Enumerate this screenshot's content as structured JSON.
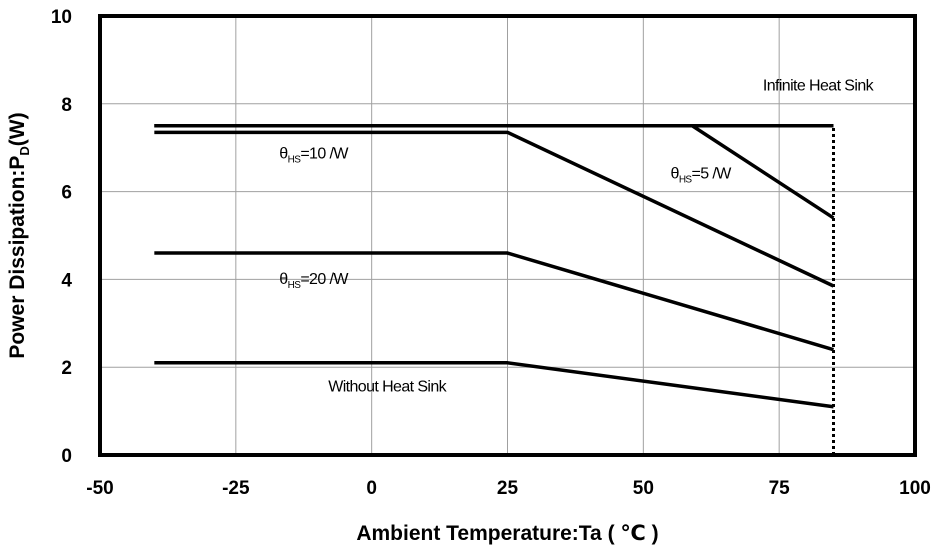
{
  "chart_data": {
    "type": "line",
    "xlabel": "Ambient Temperature:Ta ( ℃ )",
    "ylabel_main": "Power Dissipation:P",
    "ylabel_sub": "D",
    "ylabel_tail": "(W)",
    "xlim": [
      -50,
      100
    ],
    "ylim": [
      0,
      10
    ],
    "xticks": [
      "-50",
      "-25",
      "0",
      "25",
      "50",
      "75",
      "100"
    ],
    "yticks": [
      "0",
      "2",
      "4",
      "6",
      "8",
      "10"
    ],
    "grid": true,
    "series": [
      {
        "x": [
          -40,
          85
        ],
        "y": [
          7.5,
          7.5
        ],
        "style": "solid"
      },
      {
        "x": [
          -40,
          59,
          85
        ],
        "y": [
          7.5,
          7.5,
          5.4
        ],
        "style": "solid"
      },
      {
        "x": [
          -40,
          25,
          85
        ],
        "y": [
          7.35,
          7.35,
          3.85
        ],
        "style": "solid"
      },
      {
        "x": [
          -40,
          25,
          85
        ],
        "y": [
          4.6,
          4.6,
          2.4
        ],
        "style": "solid"
      },
      {
        "x": [
          -40,
          25,
          85
        ],
        "y": [
          2.1,
          2.1,
          1.1
        ],
        "style": "solid"
      },
      {
        "x": [
          85,
          85
        ],
        "y": [
          0,
          7.5
        ],
        "style": "dotted"
      }
    ],
    "annotations": {
      "infinite": {
        "text": "Infinite    Heat Sink",
        "x": 72,
        "y": 8.3
      },
      "hs10": {
        "theta": "θ",
        "sub": "HS",
        "rest": "=10   /W",
        "x": -17,
        "y": 6.75
      },
      "hs5": {
        "theta": "θ",
        "sub": "HS",
        "rest": "=5   /W",
        "x": 55,
        "y": 6.3
      },
      "hs20": {
        "theta": "θ",
        "sub": "HS",
        "rest": "=20   /W",
        "x": -17,
        "y": 3.9
      },
      "nohs": {
        "text": "Without Heat Sink",
        "x": -8,
        "y": 1.45
      }
    }
  }
}
